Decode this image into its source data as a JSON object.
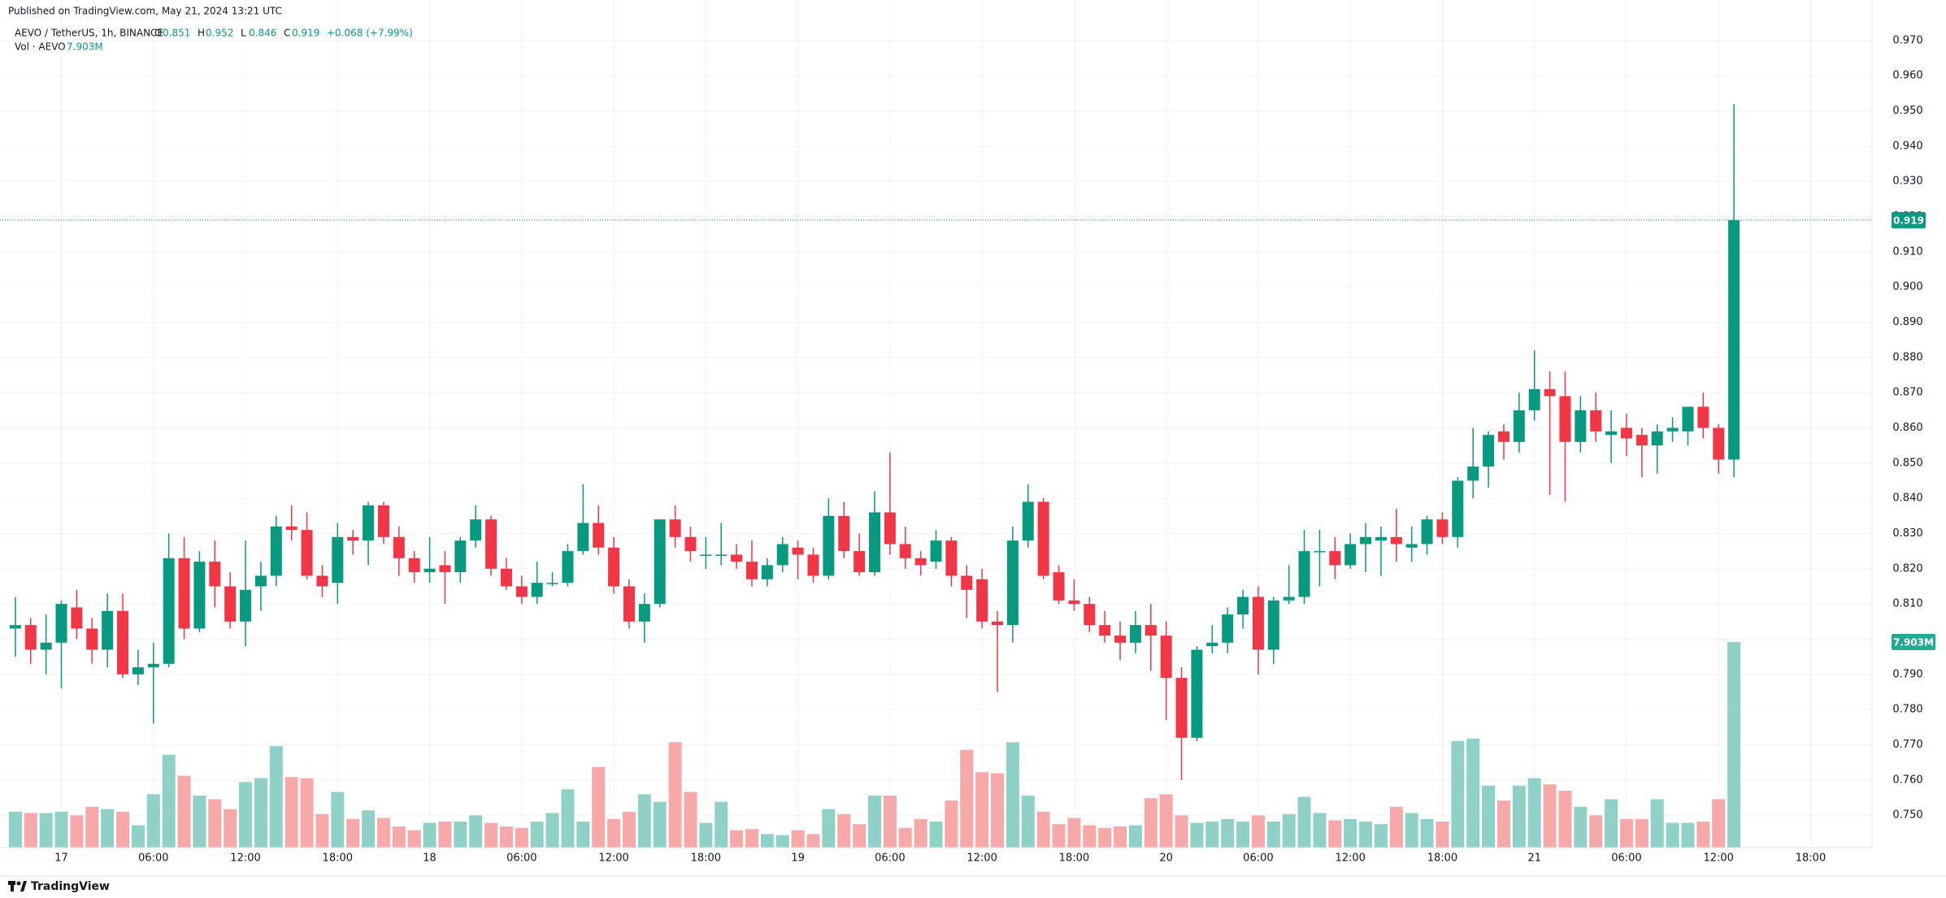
{
  "chart_data": {
    "type": "candlestick",
    "published": "Published on TradingView.com, May 21, 2024 13:21 UTC",
    "symbol": "AEVO / TetherUS, 1h, BINANCE",
    "legend_keys": [
      "O",
      "H",
      "L",
      "C"
    ],
    "change": "+0.068 (+7.99%)",
    "volume_title": "Vol · AEVO",
    "volume_tag": {
      "label": "7.903M"
    },
    "brand": "TradingView",
    "up_color": "#089981",
    "down_color": "#f23645",
    "volume_up_color": "#8fd0c7",
    "volume_down_color": "#f7a9aa",
    "grid": true,
    "xlim": [
      -1,
      121
    ],
    "xticks": [
      {
        "value": 3,
        "label": "17"
      },
      {
        "value": 9,
        "label": "06:00"
      },
      {
        "value": 15,
        "label": "12:00"
      },
      {
        "value": 21,
        "label": "18:00"
      },
      {
        "value": 27,
        "label": "18"
      },
      {
        "value": 33,
        "label": "06:00"
      },
      {
        "value": 39,
        "label": "12:00"
      },
      {
        "value": 45,
        "label": "18:00"
      },
      {
        "value": 51,
        "label": "19"
      },
      {
        "value": 57,
        "label": "06:00"
      },
      {
        "value": 63,
        "label": "12:00"
      },
      {
        "value": 69,
        "label": "18:00"
      },
      {
        "value": 75,
        "label": "20"
      },
      {
        "value": 81,
        "label": "06:00"
      },
      {
        "value": 87,
        "label": "12:00"
      },
      {
        "value": 93,
        "label": "18:00"
      },
      {
        "value": 99,
        "label": "21"
      },
      {
        "value": 105,
        "label": "06:00"
      },
      {
        "value": 111,
        "label": "12:00"
      },
      {
        "value": 117,
        "label": "18:00"
      }
    ],
    "ylim": [
      0.7408,
      0.9815
    ],
    "yticks": [
      {
        "value": 0.75,
        "label": "0.750"
      },
      {
        "value": 0.76,
        "label": "0.760"
      },
      {
        "value": 0.77,
        "label": "0.770"
      },
      {
        "value": 0.78,
        "label": "0.780"
      },
      {
        "value": 0.79,
        "label": "0.790"
      },
      {
        "value": 0.8,
        "label": "0.800"
      },
      {
        "value": 0.81,
        "label": "0.810"
      },
      {
        "value": 0.82,
        "label": "0.820"
      },
      {
        "value": 0.83,
        "label": "0.830"
      },
      {
        "value": 0.84,
        "label": "0.840"
      },
      {
        "value": 0.85,
        "label": "0.850"
      },
      {
        "value": 0.86,
        "label": "0.860"
      },
      {
        "value": 0.87,
        "label": "0.870"
      },
      {
        "value": 0.88,
        "label": "0.880"
      },
      {
        "value": 0.89,
        "label": "0.890"
      },
      {
        "value": 0.9,
        "label": "0.900"
      },
      {
        "value": 0.91,
        "label": "0.910"
      },
      {
        "value": 0.92,
        "label": "0.920"
      },
      {
        "value": 0.93,
        "label": "0.930"
      },
      {
        "value": 0.94,
        "label": "0.940"
      },
      {
        "value": 0.95,
        "label": "0.950"
      },
      {
        "value": 0.96,
        "label": "0.960"
      },
      {
        "value": 0.97,
        "label": "0.970"
      }
    ],
    "volume_ylim": [
      0,
      32580000
    ],
    "open": [
      0.803,
      0.804,
      0.797,
      0.799,
      0.809,
      0.803,
      0.797,
      0.808,
      0.79,
      0.792,
      0.793,
      0.823,
      0.803,
      0.822,
      0.815,
      0.805,
      0.815,
      0.818,
      0.832,
      0.831,
      0.818,
      0.816,
      0.829,
      0.828,
      0.838,
      0.829,
      0.823,
      0.819,
      0.821,
      0.819,
      0.828,
      0.834,
      0.82,
      0.815,
      0.812,
      0.816,
      0.816,
      0.825,
      0.833,
      0.826,
      0.815,
      0.805,
      0.81,
      0.834,
      0.829,
      0.824,
      0.824,
      0.824,
      0.822,
      0.817,
      0.821,
      0.826,
      0.824,
      0.818,
      0.835,
      0.825,
      0.819,
      0.836,
      0.827,
      0.823,
      0.822,
      0.828,
      0.818,
      0.817,
      0.805,
      0.804,
      0.828,
      0.839,
      0.819,
      0.811,
      0.81,
      0.804,
      0.801,
      0.799,
      0.804,
      0.801,
      0.789,
      0.772,
      0.798,
      0.799,
      0.807,
      0.812,
      0.797,
      0.811,
      0.812,
      0.825,
      0.825,
      0.821,
      0.827,
      0.828,
      0.829,
      0.826,
      0.827,
      0.834,
      0.829,
      0.845,
      0.849,
      0.859,
      0.856,
      0.865,
      0.871,
      0.869,
      0.856,
      0.865,
      0.858,
      0.86,
      0.858,
      0.855,
      0.859,
      0.859,
      0.866,
      0.86,
      0.851
    ],
    "high": [
      0.812,
      0.806,
      0.807,
      0.811,
      0.814,
      0.806,
      0.813,
      0.813,
      0.797,
      0.799,
      0.83,
      0.829,
      0.825,
      0.828,
      0.819,
      0.828,
      0.822,
      0.835,
      0.838,
      0.836,
      0.821,
      0.833,
      0.831,
      0.839,
      0.839,
      0.832,
      0.825,
      0.829,
      0.825,
      0.829,
      0.838,
      0.835,
      0.823,
      0.818,
      0.822,
      0.819,
      0.827,
      0.844,
      0.838,
      0.829,
      0.817,
      0.813,
      0.834,
      0.838,
      0.832,
      0.829,
      0.833,
      0.827,
      0.828,
      0.823,
      0.829,
      0.828,
      0.826,
      0.84,
      0.839,
      0.83,
      0.842,
      0.853,
      0.832,
      0.825,
      0.831,
      0.829,
      0.821,
      0.82,
      0.808,
      0.832,
      0.844,
      0.84,
      0.821,
      0.817,
      0.812,
      0.808,
      0.805,
      0.808,
      0.81,
      0.805,
      0.792,
      0.798,
      0.804,
      0.809,
      0.814,
      0.815,
      0.812,
      0.821,
      0.831,
      0.831,
      0.829,
      0.83,
      0.833,
      0.832,
      0.837,
      0.832,
      0.835,
      0.836,
      0.846,
      0.86,
      0.859,
      0.861,
      0.87,
      0.882,
      0.876,
      0.876,
      0.869,
      0.87,
      0.865,
      0.864,
      0.86,
      0.861,
      0.863,
      0.866,
      0.87,
      0.861,
      0.952
    ],
    "low": [
      0.795,
      0.793,
      0.79,
      0.786,
      0.8,
      0.793,
      0.792,
      0.789,
      0.787,
      0.776,
      0.792,
      0.8,
      0.802,
      0.809,
      0.803,
      0.798,
      0.808,
      0.815,
      0.828,
      0.817,
      0.812,
      0.81,
      0.824,
      0.821,
      0.827,
      0.818,
      0.816,
      0.816,
      0.81,
      0.816,
      0.826,
      0.818,
      0.814,
      0.81,
      0.81,
      0.815,
      0.815,
      0.824,
      0.824,
      0.813,
      0.803,
      0.799,
      0.809,
      0.826,
      0.822,
      0.82,
      0.821,
      0.82,
      0.815,
      0.815,
      0.819,
      0.817,
      0.816,
      0.817,
      0.823,
      0.818,
      0.818,
      0.824,
      0.82,
      0.818,
      0.82,
      0.815,
      0.806,
      0.803,
      0.785,
      0.799,
      0.826,
      0.817,
      0.81,
      0.808,
      0.802,
      0.799,
      0.794,
      0.796,
      0.791,
      0.777,
      0.76,
      0.771,
      0.796,
      0.796,
      0.803,
      0.79,
      0.793,
      0.81,
      0.81,
      0.815,
      0.817,
      0.82,
      0.819,
      0.818,
      0.822,
      0.822,
      0.824,
      0.827,
      0.826,
      0.84,
      0.843,
      0.851,
      0.853,
      0.862,
      0.841,
      0.839,
      0.853,
      0.856,
      0.85,
      0.852,
      0.846,
      0.847,
      0.856,
      0.855,
      0.857,
      0.847,
      0.846
    ],
    "close": [
      0.804,
      0.797,
      0.799,
      0.81,
      0.803,
      0.797,
      0.808,
      0.79,
      0.792,
      0.793,
      0.823,
      0.803,
      0.822,
      0.815,
      0.805,
      0.814,
      0.818,
      0.832,
      0.831,
      0.818,
      0.815,
      0.829,
      0.828,
      0.838,
      0.829,
      0.823,
      0.819,
      0.82,
      0.819,
      0.828,
      0.834,
      0.82,
      0.815,
      0.812,
      0.816,
      0.816,
      0.825,
      0.833,
      0.826,
      0.815,
      0.805,
      0.81,
      0.834,
      0.829,
      0.825,
      0.824,
      0.824,
      0.822,
      0.817,
      0.821,
      0.827,
      0.824,
      0.818,
      0.835,
      0.825,
      0.819,
      0.836,
      0.827,
      0.823,
      0.821,
      0.828,
      0.818,
      0.814,
      0.805,
      0.804,
      0.828,
      0.839,
      0.818,
      0.811,
      0.81,
      0.804,
      0.801,
      0.799,
      0.804,
      0.801,
      0.789,
      0.772,
      0.797,
      0.799,
      0.807,
      0.812,
      0.797,
      0.811,
      0.812,
      0.825,
      0.825,
      0.821,
      0.827,
      0.829,
      0.829,
      0.827,
      0.827,
      0.834,
      0.829,
      0.845,
      0.849,
      0.858,
      0.856,
      0.865,
      0.871,
      0.869,
      0.856,
      0.865,
      0.859,
      0.859,
      0.857,
      0.855,
      0.859,
      0.86,
      0.866,
      0.86,
      0.851,
      0.919
    ],
    "volume": [
      1380000,
      1330000,
      1330000,
      1380000,
      1240000,
      1570000,
      1480000,
      1380000,
      860000,
      2050000,
      3570000,
      2760000,
      2000000,
      1860000,
      1480000,
      2520000,
      2670000,
      3900000,
      2710000,
      2670000,
      1290000,
      2140000,
      1100000,
      1430000,
      1140000,
      810000,
      670000,
      950000,
      1000000,
      1000000,
      1240000,
      950000,
      810000,
      760000,
      1000000,
      1330000,
      2240000,
      1000000,
      3100000,
      1100000,
      1380000,
      2050000,
      1760000,
      4050000,
      2140000,
      950000,
      1760000,
      670000,
      710000,
      520000,
      480000,
      670000,
      520000,
      1480000,
      1290000,
      900000,
      2000000,
      2000000,
      760000,
      1100000,
      1000000,
      1810000,
      3760000,
      2900000,
      2860000,
      4050000,
      2000000,
      1380000,
      900000,
      1140000,
      860000,
      760000,
      810000,
      860000,
      1900000,
      2050000,
      1240000,
      950000,
      1000000,
      1100000,
      1000000,
      1240000,
      1000000,
      1290000,
      1950000,
      1330000,
      1050000,
      1100000,
      1000000,
      900000,
      1570000,
      1330000,
      1100000,
      1000000,
      4100000,
      4190000,
      2380000,
      1810000,
      2380000,
      2670000,
      2430000,
      2190000,
      1570000,
      1240000,
      1860000,
      1100000,
      1100000,
      1860000,
      950000,
      950000,
      1000000,
      1860000,
      7903000
    ]
  }
}
